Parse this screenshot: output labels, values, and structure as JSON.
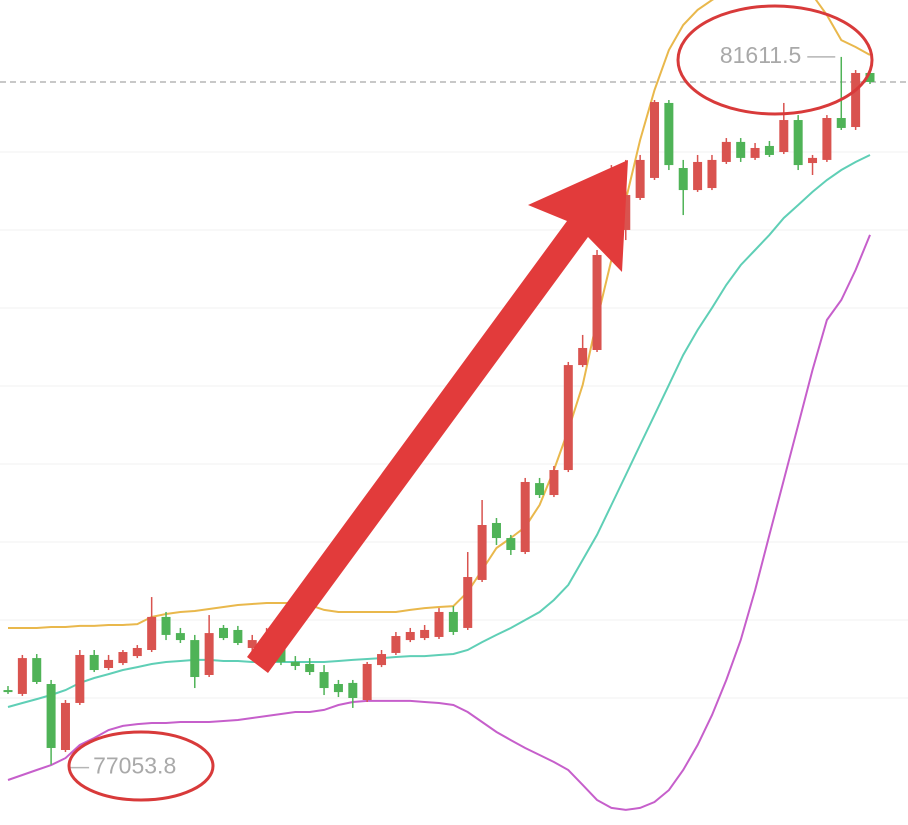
{
  "chart_data": {
    "type": "candlestick",
    "ylim": [
      76665,
      81978
    ],
    "up_color": "#d9534f",
    "down_color": "#4fb357",
    "last_price_line": true,
    "open": [
      77534,
      77509,
      77740,
      77573,
      77148,
      77451,
      77760,
      77676,
      77708,
      77753,
      77792,
      78005,
      77901,
      77856,
      77631,
      77934,
      77921,
      77805,
      77805,
      77824,
      77715,
      77702,
      77650,
      77573,
      77580,
      77470,
      77695,
      77773,
      77856,
      77869,
      77876,
      78037,
      77934,
      78243,
      78610,
      78513,
      78423,
      78867,
      78790,
      78951,
      79627,
      79724,
      80336,
      80497,
      80703,
      80832,
      81315,
      80896,
      80754,
      80767,
      80935,
      81064,
      80961,
      81038,
      80999,
      81205,
      80928,
      80948,
      81218,
      81160,
      81508
    ],
    "high": [
      77560,
      77760,
      77766,
      77599,
      77470,
      77792,
      77792,
      77760,
      77792,
      77824,
      78133,
      78037,
      77934,
      77889,
      78017,
      77953,
      77947,
      77889,
      77934,
      77856,
      77753,
      77740,
      77695,
      77599,
      77599,
      77715,
      77792,
      77908,
      77934,
      77953,
      78062,
      78075,
      78423,
      78758,
      78642,
      78533,
      78900,
      78900,
      78977,
      79647,
      79821,
      80368,
      80915,
      80948,
      80980,
      81334,
      81334,
      80948,
      80980,
      80980,
      81089,
      81089,
      81057,
      81070,
      81315,
      81237,
      80980,
      81237,
      81611.5,
      81527,
      81527
    ],
    "low": [
      77509,
      77496,
      77573,
      77053.8,
      77135,
      77438,
      77650,
      77663,
      77695,
      77740,
      77779,
      77856,
      77837,
      77547,
      77618,
      77856,
      77824,
      77728,
      77779,
      77695,
      77663,
      77631,
      77502,
      77489,
      77419,
      77457,
      77682,
      77760,
      77843,
      77856,
      77863,
      77889,
      77921,
      78230,
      78468,
      78404,
      78410,
      78771,
      78777,
      78938,
      79614,
      79711,
      80323,
      80432,
      80690,
      80819,
      80883,
      80593,
      80742,
      80754,
      80922,
      80935,
      80948,
      80967,
      80986,
      80883,
      80851,
      80935,
      81141,
      81141,
      81437
    ],
    "close": [
      77521,
      77740,
      77586,
      77161,
      77451,
      77760,
      77663,
      77728,
      77779,
      77805,
      78005,
      77889,
      77856,
      77618,
      77901,
      77869,
      77837,
      77856,
      77856,
      77715,
      77689,
      77650,
      77547,
      77521,
      77483,
      77702,
      77766,
      77882,
      77908,
      77921,
      78037,
      77908,
      78262,
      78597,
      78513,
      78436,
      78874,
      78790,
      78951,
      79627,
      79737,
      80336,
      80883,
      80722,
      80948,
      81321,
      80915,
      80754,
      80935,
      80948,
      81064,
      80961,
      81025,
      80980,
      81205,
      80915,
      80961,
      81218,
      81154,
      81508,
      81450
    ],
    "bands": [
      {
        "color": "#e9b84c",
        "values": [
          77934,
          77934,
          77934,
          77940,
          77940,
          77947,
          77947,
          77953,
          77953,
          77959,
          78005,
          78024,
          78037,
          78043,
          78056,
          78069,
          78082,
          78088,
          78095,
          78095,
          78095,
          78082,
          78050,
          78037,
          78037,
          78037,
          78037,
          78037,
          78050,
          78062,
          78069,
          78075,
          78166,
          78307,
          78449,
          78513,
          78584,
          78726,
          78951,
          79209,
          79499,
          79917,
          80304,
          80690,
          81076,
          81398,
          81656,
          81817,
          81914,
          81978,
          82030,
          82055,
          82075,
          82075,
          82075,
          82055,
          82010,
          81881,
          81720,
          81675,
          81624
        ]
      },
      {
        "color": "#5fcfb6",
        "values": [
          77425,
          77451,
          77476,
          77502,
          77534,
          77580,
          77612,
          77637,
          77663,
          77682,
          77702,
          77715,
          77721,
          77728,
          77728,
          77721,
          77721,
          77715,
          77715,
          77715,
          77715,
          77715,
          77715,
          77721,
          77728,
          77734,
          77740,
          77747,
          77753,
          77753,
          77760,
          77766,
          77792,
          77843,
          77889,
          77934,
          77985,
          78037,
          78114,
          78211,
          78372,
          78533,
          78726,
          78919,
          79112,
          79305,
          79499,
          79692,
          79853,
          79995,
          80143,
          80271,
          80368,
          80465,
          80574,
          80658,
          80742,
          80819,
          80883,
          80935,
          80980
        ]
      },
      {
        "color": "#c65fcb",
        "values": [
          76955,
          76987,
          77019,
          77051,
          77096,
          77180,
          77225,
          77277,
          77303,
          77315,
          77322,
          77322,
          77328,
          77328,
          77328,
          77335,
          77341,
          77354,
          77367,
          77380,
          77393,
          77393,
          77406,
          77438,
          77457,
          77464,
          77464,
          77464,
          77464,
          77457,
          77451,
          77438,
          77393,
          77328,
          77264,
          77212,
          77161,
          77116,
          77071,
          77019,
          76923,
          76826,
          76775,
          76762,
          76775,
          76813,
          76890,
          77019,
          77180,
          77373,
          77599,
          77856,
          78178,
          78533,
          78887,
          79241,
          79595,
          79917,
          80046,
          80239,
          80465
        ]
      }
    ],
    "annotations": [
      {
        "label": "81611.5",
        "value": 81611.5
      },
      {
        "label": "77053.8",
        "value": 77053.8
      }
    ]
  }
}
